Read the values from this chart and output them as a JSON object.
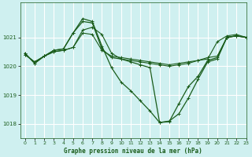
{
  "xlabel": "Graphe pression niveau de la mer (hPa)",
  "bg_color": "#cff0f0",
  "grid_color": "#ffffff",
  "line_color": "#1a5c1a",
  "ylim": [
    1017.5,
    1022.2
  ],
  "xlim": [
    -0.5,
    23
  ],
  "yticks": [
    1018,
    1019,
    1020,
    1021
  ],
  "xticks": [
    0,
    1,
    2,
    3,
    4,
    5,
    6,
    7,
    8,
    9,
    10,
    11,
    12,
    13,
    14,
    15,
    16,
    17,
    18,
    19,
    20,
    21,
    22,
    23
  ],
  "series": [
    [
      1020.4,
      1020.15,
      1020.35,
      1020.5,
      1020.55,
      1020.65,
      1021.15,
      1021.1,
      1020.55,
      1020.35,
      1020.3,
      1020.25,
      1020.2,
      1020.15,
      1020.1,
      1020.05,
      1020.1,
      1020.15,
      1020.2,
      1020.3,
      1020.35,
      1021.0,
      1021.05,
      1021.0
    ],
    [
      1020.4,
      1020.15,
      1020.35,
      1020.5,
      1020.55,
      1020.65,
      1021.25,
      1021.35,
      1021.1,
      1020.45,
      1020.25,
      1020.2,
      1020.15,
      1020.1,
      1020.05,
      1020.0,
      1020.05,
      1020.1,
      1020.2,
      1020.25,
      1020.85,
      1021.05,
      1021.1,
      1021.0
    ],
    [
      1020.45,
      1020.1,
      1020.35,
      1020.55,
      1020.6,
      1021.15,
      1021.55,
      1021.5,
      1020.6,
      1020.3,
      1020.25,
      1020.15,
      1020.05,
      1019.95,
      1018.05,
      1018.08,
      1018.7,
      1019.3,
      1019.65,
      1020.2,
      1020.3,
      1021.0,
      1021.05,
      1021.0
    ],
    [
      1020.45,
      1020.1,
      1020.35,
      1020.55,
      1020.6,
      1021.15,
      1021.65,
      1021.55,
      1020.7,
      1019.95,
      1019.45,
      1019.15,
      1018.8,
      1018.45,
      1018.05,
      1018.1,
      1018.35,
      1018.9,
      1019.55,
      1020.15,
      1020.25,
      1021.0,
      1021.05,
      1021.0
    ]
  ],
  "linewidths": [
    0.8,
    0.8,
    0.9,
    0.9
  ],
  "show_markers": [
    true,
    true,
    true,
    true
  ],
  "marker_size": 3.0
}
